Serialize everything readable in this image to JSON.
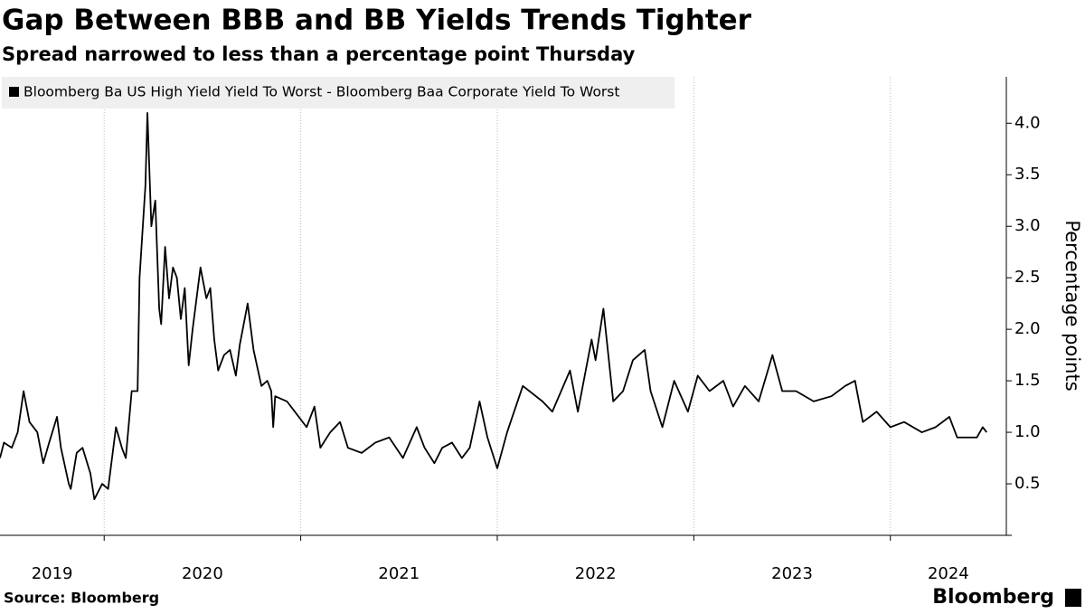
{
  "chart_data": {
    "type": "line",
    "title": "Gap Between BBB and BB Yields Trends Tighter",
    "subtitle": "Spread narrowed to less than a percentage point Thursday",
    "ylabel": "Percentage points",
    "source": "Source: Bloomberg",
    "brand": "Bloomberg",
    "x": [
      2019.47,
      2019.49,
      2019.53,
      2019.56,
      2019.59,
      2019.62,
      2019.66,
      2019.69,
      2019.72,
      2019.76,
      2019.78,
      2019.82,
      2019.83,
      2019.86,
      2019.89,
      2019.93,
      2019.95,
      2019.99,
      2020.02,
      2020.06,
      2020.09,
      2020.11,
      2020.14,
      2020.17,
      2020.18,
      2020.21,
      2020.22,
      2020.24,
      2020.26,
      2020.28,
      2020.29,
      2020.31,
      2020.33,
      2020.35,
      2020.37,
      2020.39,
      2020.41,
      2020.43,
      2020.45,
      2020.47,
      2020.49,
      2020.52,
      2020.54,
      2020.56,
      2020.58,
      2020.61,
      2020.64,
      2020.67,
      2020.69,
      2020.73,
      2020.76,
      2020.8,
      2020.83,
      2020.85,
      2020.86,
      2020.87,
      2020.93,
      2020.99,
      2021.03,
      2021.07,
      2021.1,
      2021.15,
      2021.2,
      2021.24,
      2021.31,
      2021.38,
      2021.45,
      2021.52,
      2021.59,
      2021.63,
      2021.68,
      2021.72,
      2021.77,
      2021.82,
      2021.86,
      2021.91,
      2021.95,
      2022.0,
      2022.05,
      2022.13,
      2022.23,
      2022.28,
      2022.37,
      2022.41,
      2022.48,
      2022.5,
      2022.54,
      2022.59,
      2022.64,
      2022.69,
      2022.75,
      2022.78,
      2022.84,
      2022.9,
      2022.97,
      2023.02,
      2023.08,
      2023.15,
      2023.2,
      2023.26,
      2023.33,
      2023.4,
      2023.45,
      2023.52,
      2023.61,
      2023.7,
      2023.77,
      2023.82,
      2023.84,
      2023.86,
      2023.93,
      2024.0,
      2024.07,
      2024.16,
      2024.23,
      2024.3,
      2024.34,
      2024.44,
      2024.47,
      2024.49
    ],
    "series": [
      {
        "name": "Bloomberg Ba US High Yield Yield To Worst - Bloomberg Baa Corporate Yield To Worst",
        "color": "#000000",
        "values": [
          0.75,
          0.9,
          0.85,
          1.0,
          1.4,
          1.1,
          1.0,
          0.7,
          0.9,
          1.15,
          0.85,
          0.5,
          0.45,
          0.8,
          0.85,
          0.6,
          0.35,
          0.5,
          0.45,
          1.05,
          0.85,
          0.75,
          1.4,
          1.4,
          2.5,
          3.4,
          4.1,
          3.0,
          3.25,
          2.2,
          2.05,
          2.8,
          2.3,
          2.6,
          2.5,
          2.1,
          2.4,
          1.65,
          2.0,
          2.3,
          2.6,
          2.3,
          2.4,
          1.9,
          1.6,
          1.75,
          1.8,
          1.55,
          1.85,
          2.25,
          1.8,
          1.45,
          1.5,
          1.4,
          1.05,
          1.35,
          1.3,
          1.15,
          1.05,
          1.25,
          0.85,
          1.0,
          1.1,
          0.85,
          0.8,
          0.9,
          0.95,
          0.75,
          1.05,
          0.85,
          0.7,
          0.85,
          0.9,
          0.75,
          0.85,
          1.3,
          0.95,
          0.65,
          1.0,
          1.45,
          1.3,
          1.2,
          1.6,
          1.2,
          1.9,
          1.7,
          2.2,
          1.3,
          1.4,
          1.7,
          1.8,
          1.4,
          1.05,
          1.5,
          1.2,
          1.55,
          1.4,
          1.5,
          1.25,
          1.45,
          1.3,
          1.75,
          1.4,
          1.4,
          1.3,
          1.35,
          1.45,
          1.5,
          1.3,
          1.1,
          1.2,
          1.05,
          1.1,
          1.0,
          1.05,
          1.15,
          0.95,
          0.95,
          1.05,
          1.0
        ]
      }
    ],
    "xlim": [
      2019.47,
      2024.59
    ],
    "xticks": [
      2020,
      2021,
      2022,
      2023,
      2024
    ],
    "year_labels": [
      2019,
      2020,
      2021,
      2022,
      2023,
      2024
    ],
    "ylim": [
      0,
      4.45
    ],
    "yticks": [
      0.5,
      {
        "value": 1,
        "label": "1.0"
      },
      1.5,
      {
        "value": 2,
        "label": "2.0"
      },
      2.5,
      {
        "value": 3,
        "label": "3.0"
      },
      3.5,
      {
        "value": 4,
        "label": "4.0"
      }
    ],
    "grid": true,
    "legend": "top-left"
  }
}
